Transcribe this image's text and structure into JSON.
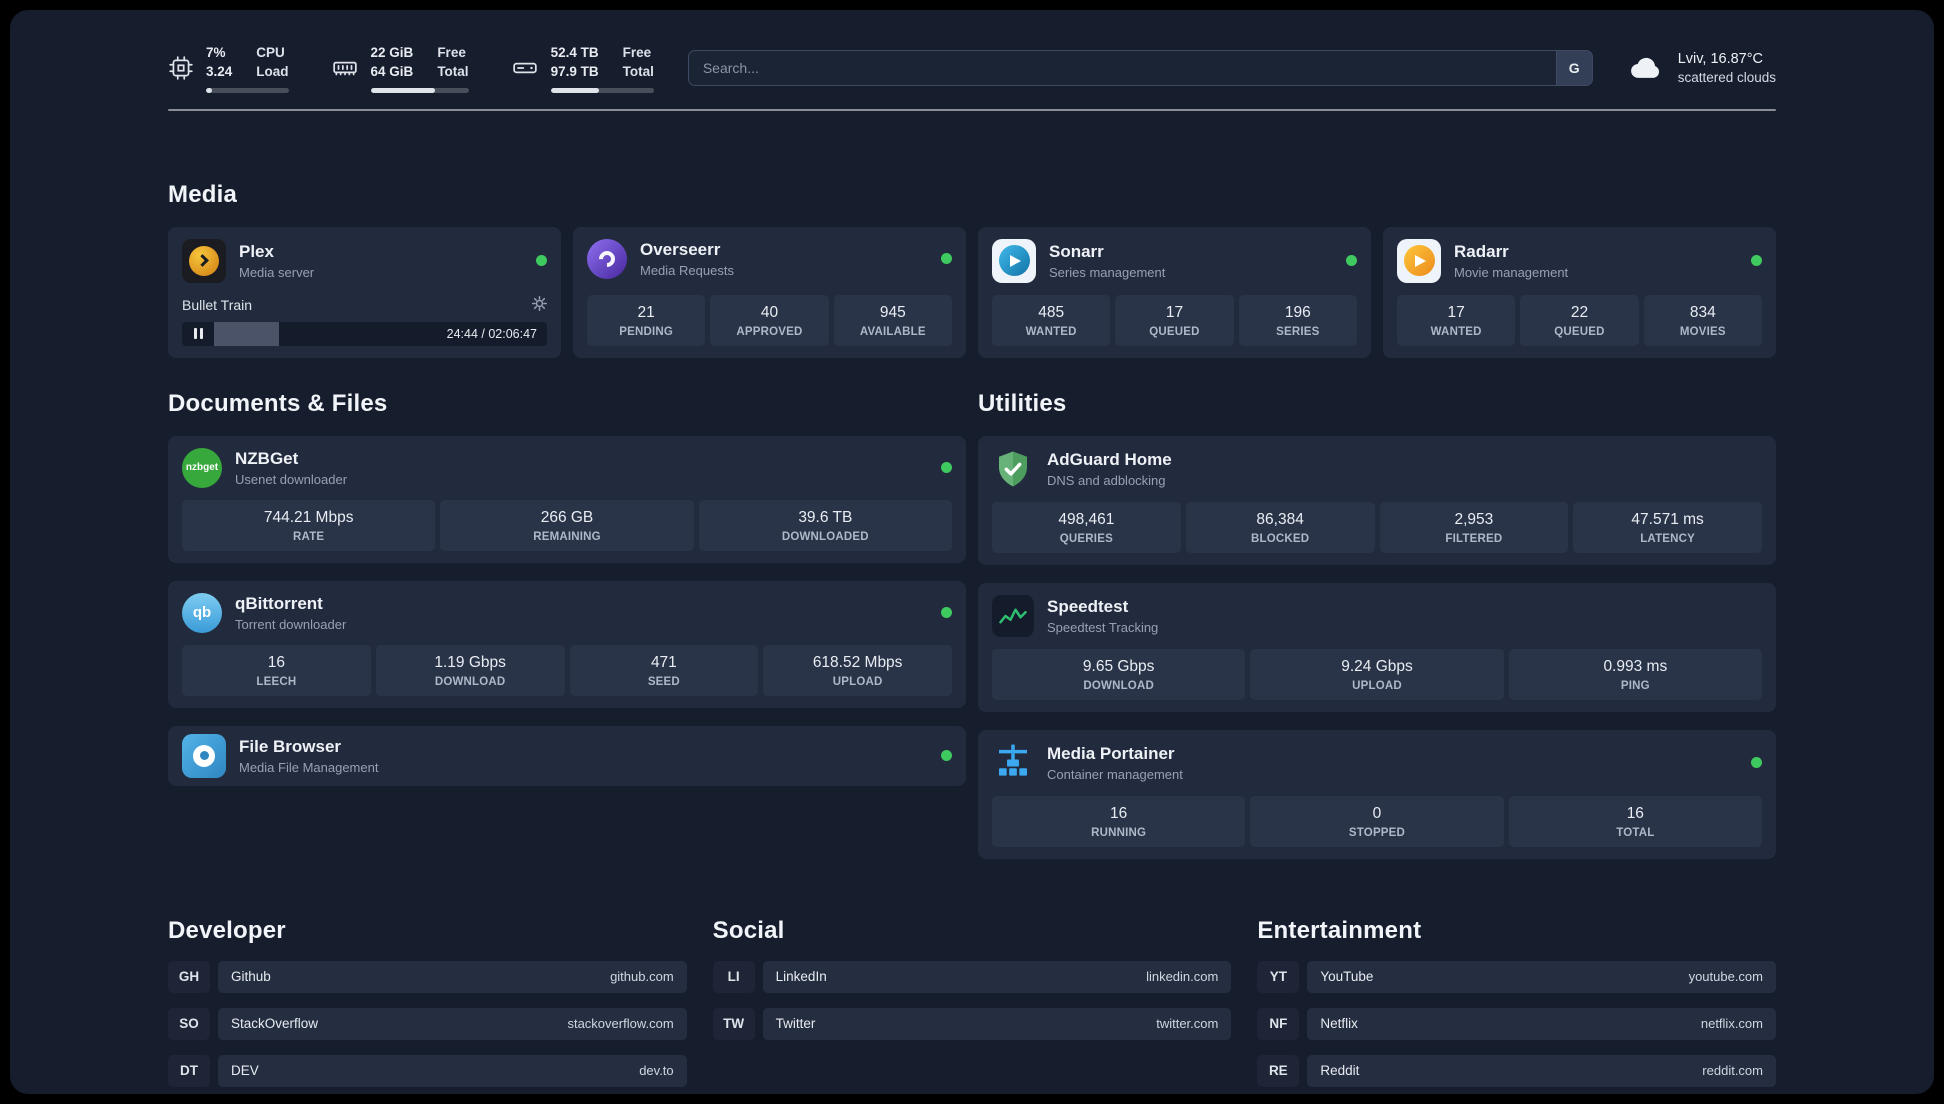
{
  "colors": {
    "background": "#161d2d",
    "card": "#222b3d",
    "stat_box": "#2a3448",
    "status_online": "#3fca5f",
    "plex_amber": "#e5a00d",
    "sonarr_blue": "#35a7e0",
    "radarr_gold": "#fdc63a",
    "adguard_green": "#67b279",
    "portainer_blue": "#3ba8f0"
  },
  "topbar": {
    "cpu": {
      "icon": "cpu-icon",
      "value_top": "7%",
      "value_bottom": "3.24",
      "label_top": "CPU",
      "label_bottom": "Load",
      "bar_percent": 7
    },
    "memory": {
      "icon": "memory-icon",
      "value_top": "22 GiB",
      "value_bottom": "64 GiB",
      "label_top": "Free",
      "label_bottom": "Total",
      "bar_percent": 66
    },
    "disk": {
      "icon": "hard-drive-icon",
      "value_top": "52.4 TB",
      "value_bottom": "97.9 TB",
      "label_top": "Free",
      "label_bottom": "Total",
      "bar_percent": 47
    },
    "search": {
      "placeholder": "Search...",
      "engine_button": "G"
    },
    "weather": {
      "icon": "cloud-icon",
      "location": "Lviv, 16.87°C",
      "condition": "scattered clouds"
    }
  },
  "sections": {
    "media": "Media",
    "documents": "Documents & Files",
    "utilities": "Utilities",
    "developer": "Developer",
    "social": "Social",
    "entertainment": "Entertainment"
  },
  "apps": {
    "plex": {
      "name": "Plex",
      "subtitle": "Media server",
      "status": "online",
      "now_playing": {
        "title": "Bullet Train",
        "time_display": "24:44 / 02:06:47",
        "elapsed": "24:44",
        "duration": "02:06:47",
        "progress_percent": 19.6
      }
    },
    "overseerr": {
      "name": "Overseerr",
      "subtitle": "Media Requests",
      "status": "online",
      "stats": [
        {
          "value": "21",
          "label": "PENDING"
        },
        {
          "value": "40",
          "label": "APPROVED"
        },
        {
          "value": "945",
          "label": "AVAILABLE"
        }
      ]
    },
    "sonarr": {
      "name": "Sonarr",
      "subtitle": "Series management",
      "status": "online",
      "stats": [
        {
          "value": "485",
          "label": "WANTED"
        },
        {
          "value": "17",
          "label": "QUEUED"
        },
        {
          "value": "196",
          "label": "SERIES"
        }
      ]
    },
    "radarr": {
      "name": "Radarr",
      "subtitle": "Movie management",
      "status": "online",
      "stats": [
        {
          "value": "17",
          "label": "WANTED"
        },
        {
          "value": "22",
          "label": "QUEUED"
        },
        {
          "value": "834",
          "label": "MOVIES"
        }
      ]
    },
    "nzbget": {
      "name": "NZBGet",
      "subtitle": "Usenet downloader",
      "status": "online",
      "icon_text": "nzbget",
      "stats": [
        {
          "value": "744.21 Mbps",
          "label": "RATE"
        },
        {
          "value": "266 GB",
          "label": "REMAINING"
        },
        {
          "value": "39.6 TB",
          "label": "DOWNLOADED"
        }
      ]
    },
    "qbittorrent": {
      "name": "qBittorrent",
      "subtitle": "Torrent downloader",
      "status": "online",
      "icon_text": "qb",
      "stats": [
        {
          "value": "16",
          "label": "LEECH"
        },
        {
          "value": "1.19 Gbps",
          "label": "DOWNLOAD"
        },
        {
          "value": "471",
          "label": "SEED"
        },
        {
          "value": "618.52 Mbps",
          "label": "UPLOAD"
        }
      ]
    },
    "filebrowser": {
      "name": "File Browser",
      "subtitle": "Media File Management",
      "status": "online"
    },
    "adguard": {
      "name": "AdGuard Home",
      "subtitle": "DNS and adblocking",
      "stats": [
        {
          "value": "498,461",
          "label": "QUERIES"
        },
        {
          "value": "86,384",
          "label": "BLOCKED"
        },
        {
          "value": "2,953",
          "label": "FILTERED"
        },
        {
          "value": "47.571 ms",
          "label": "LATENCY"
        }
      ]
    },
    "speedtest": {
      "name": "Speedtest",
      "subtitle": "Speedtest Tracking",
      "stats": [
        {
          "value": "9.65 Gbps",
          "label": "DOWNLOAD"
        },
        {
          "value": "9.24 Gbps",
          "label": "UPLOAD"
        },
        {
          "value": "0.993 ms",
          "label": "PING"
        }
      ]
    },
    "portainer": {
      "name": "Media Portainer",
      "subtitle": "Container management",
      "status": "online",
      "stats": [
        {
          "value": "16",
          "label": "RUNNING"
        },
        {
          "value": "0",
          "label": "STOPPED"
        },
        {
          "value": "16",
          "label": "TOTAL"
        }
      ]
    }
  },
  "bookmarks": {
    "developer": [
      {
        "abbr": "GH",
        "name": "Github",
        "url": "github.com"
      },
      {
        "abbr": "SO",
        "name": "StackOverflow",
        "url": "stackoverflow.com"
      },
      {
        "abbr": "DT",
        "name": "DEV",
        "url": "dev.to"
      }
    ],
    "social": [
      {
        "abbr": "LI",
        "name": "LinkedIn",
        "url": "linkedin.com"
      },
      {
        "abbr": "TW",
        "name": "Twitter",
        "url": "twitter.com"
      }
    ],
    "entertainment": [
      {
        "abbr": "YT",
        "name": "YouTube",
        "url": "youtube.com"
      },
      {
        "abbr": "NF",
        "name": "Netflix",
        "url": "netflix.com"
      },
      {
        "abbr": "RE",
        "name": "Reddit",
        "url": "reddit.com"
      }
    ]
  }
}
